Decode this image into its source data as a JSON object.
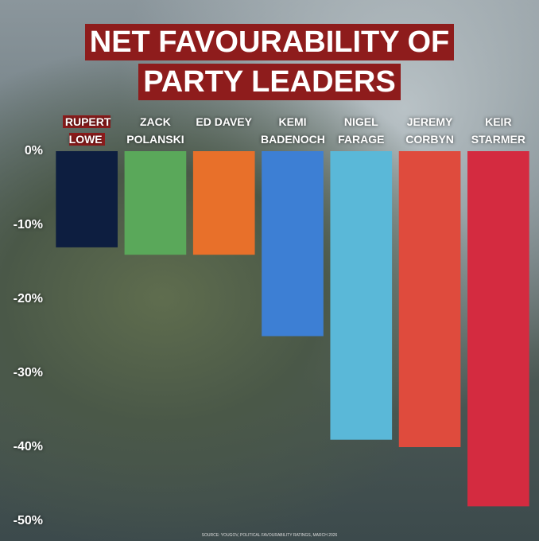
{
  "chart_data": {
    "type": "bar",
    "title": [
      "NET FAVOURABILITY OF",
      "PARTY LEADERS"
    ],
    "categories": [
      "RUPERT LOWE",
      "ZACK POLANSKI",
      "ED DAVEY",
      "KEMI BADENOCH",
      "NIGEL FARAGE",
      "JEREMY CORBYN",
      "KEIR STARMER"
    ],
    "series": [
      {
        "name": "Net favourability",
        "values": [
          -13,
          -14,
          -14,
          -25,
          -39,
          -40,
          -48
        ],
        "colors": [
          "#0d1e40",
          "#5aa85a",
          "#e8702a",
          "#3d7fd4",
          "#5ab8d8",
          "#df4b3d",
          "#d42b40"
        ]
      }
    ],
    "ylim": [
      -50,
      0
    ],
    "yticks": [
      {
        "value": 0,
        "label": "0%"
      },
      {
        "value": -10,
        "label": "-10%"
      },
      {
        "value": -20,
        "label": "-20%"
      },
      {
        "value": -30,
        "label": "-30%"
      },
      {
        "value": -40,
        "label": "-40%"
      },
      {
        "value": -50,
        "label": "-50%"
      }
    ],
    "grid": false,
    "source": "SOURCE: YOUGOV, POLITICAL FAVOURABILITY RATINGS, MARCH 2026"
  }
}
